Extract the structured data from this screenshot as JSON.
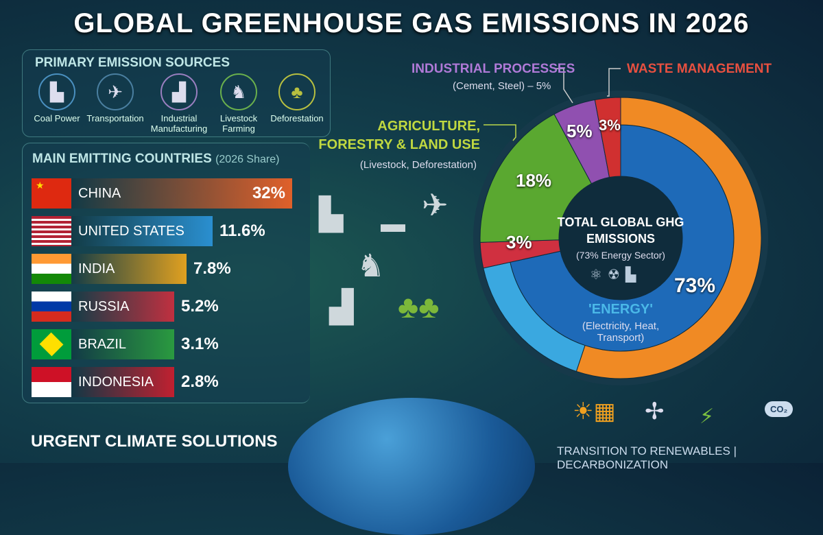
{
  "title": "GLOBAL GREENHOUSE GAS EMISSIONS IN 2026",
  "sources": {
    "heading": "PRIMARY EMISSION SOURCES",
    "items": [
      {
        "label": "Coal Power",
        "icon": "power-plant-icon",
        "color": "#4a90c0"
      },
      {
        "label": "Transportation",
        "icon": "car-plane-icon",
        "color": "#4a7fa0"
      },
      {
        "label": "Industrial Manufacturing",
        "icon": "factory-icon",
        "color": "#9a7fc0"
      },
      {
        "label": "Livestock Farming",
        "icon": "cow-icon",
        "color": "#6ab04c"
      },
      {
        "label": "Deforestation",
        "icon": "trees-icon",
        "color": "#b8c040"
      }
    ]
  },
  "countries": {
    "heading": "MAIN EMITTING COUNTRIES",
    "subheading": "(2026 Share)"
  },
  "chart_data": [
    {
      "type": "bar",
      "orientation": "horizontal",
      "title": "MAIN EMITTING COUNTRIES (2026 Share)",
      "categories": [
        "CHINA",
        "UNITED STATES",
        "INDIA",
        "RUSSIA",
        "BRAZIL",
        "INDONESIA"
      ],
      "values": [
        32,
        11.6,
        7.8,
        5.2,
        3.1,
        2.8
      ],
      "labels": [
        "32%",
        "11.6%",
        "7.8%",
        "5.2%",
        "3.1%",
        "2.8%"
      ],
      "colors": [
        "#e0602a",
        "#2a8fd0",
        "#e0a020",
        "#c03040",
        "#2a9a40",
        "#c02030"
      ]
    },
    {
      "type": "pie",
      "title": "TOTAL GLOBAL GHG EMISSIONS",
      "subtitle": "(73% Energy Sector)",
      "slices": [
        {
          "name": "'ENERGY'",
          "detail": "(Electricity, Heat, Transport)",
          "value": 73,
          "label": "73%",
          "color": "#1e6ab8"
        },
        {
          "name": "",
          "detail": "",
          "value": 3,
          "label": "3%",
          "color": "#d03040"
        },
        {
          "name": "AGRICULTURE, FORESTRY & LAND USE",
          "detail": "(Livestock, Deforestation)",
          "value": 18,
          "label": "18%",
          "color": "#5aa830"
        },
        {
          "name": "INDUSTRIAL PROCESSES",
          "detail": "(Cement, Steel) – 5%",
          "value": 5,
          "label": "5%",
          "color": "#9050b0"
        },
        {
          "name": "WASTE MANAGEMENT",
          "detail": "",
          "value": 3,
          "label": "3%",
          "color": "#d03030"
        }
      ]
    }
  ],
  "footer": {
    "solutions": "URGENT CLIMATE SOLUTIONS",
    "renewables": "TRANSITION TO RENEWABLES | DECARBONIZATION",
    "co2": "CO₂"
  }
}
